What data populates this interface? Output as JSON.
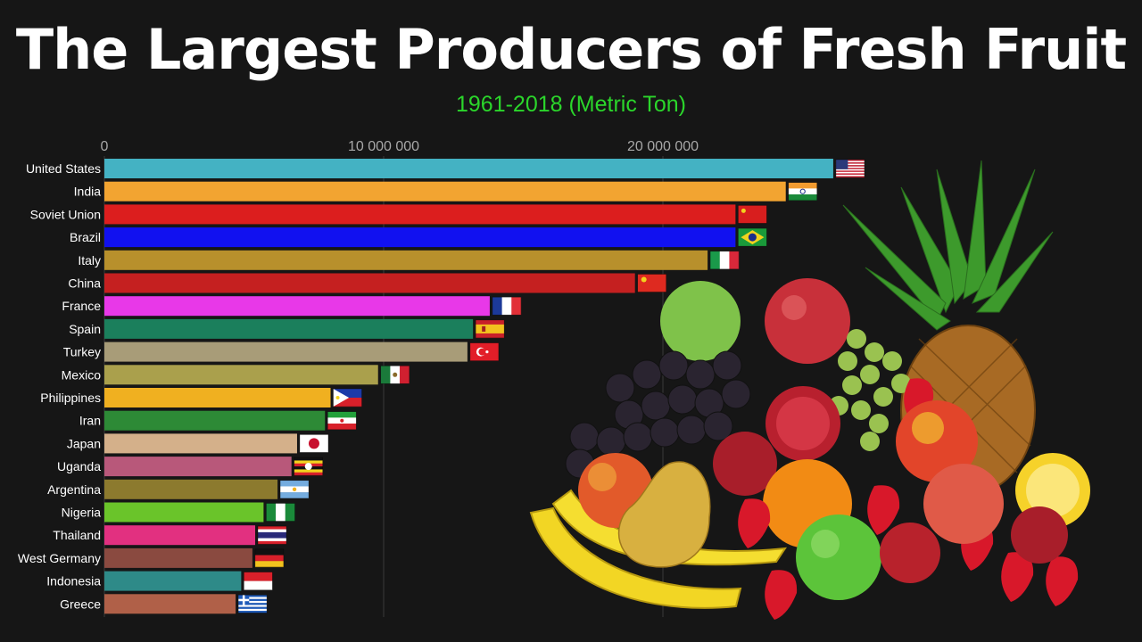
{
  "header": {
    "title": "The Largest Producers of Fresh Fruit",
    "subtitle": "1961-2018 (Metric Ton)"
  },
  "chart_data": {
    "type": "bar",
    "orientation": "horizontal",
    "title": "The Largest Producers of Fresh Fruit",
    "subtitle": "1961-2018 (Metric Ton)",
    "xlim": [
      0,
      26000000
    ],
    "xticks": [
      0,
      10000000,
      20000000
    ],
    "xtick_labels": [
      "0",
      "10 000 000",
      "20 000 000"
    ],
    "grid": true,
    "categories": [
      "United States",
      "India",
      "Soviet Union",
      "Brazil",
      "Italy",
      "China",
      "France",
      "Spain",
      "Turkey",
      "Mexico",
      "Philippines",
      "Iran",
      "Japan",
      "Uganda",
      "Argentina",
      "Nigeria",
      "Thailand",
      "West Germany",
      "Indonesia",
      "Greece"
    ],
    "values": [
      26100000,
      24400000,
      22600000,
      22600000,
      21600000,
      19000000,
      13800000,
      13200000,
      13000000,
      9800000,
      8100000,
      7900000,
      6900000,
      6700000,
      6200000,
      5700000,
      5400000,
      5300000,
      4900000,
      4700000
    ],
    "colors": [
      "#44b2c3",
      "#f2a431",
      "#dc1e1e",
      "#1111f0",
      "#b8902c",
      "#c52020",
      "#e838e8",
      "#1b7f5c",
      "#a89c78",
      "#aaa04c",
      "#f0b020",
      "#2d8a36",
      "#d4b08a",
      "#b8587a",
      "#8c7a2e",
      "#6ac42a",
      "#e23080",
      "#8a4a40",
      "#2e8a88",
      "#b06048"
    ],
    "flags": [
      "us-flag-icon",
      "india-flag-icon",
      "ussr-flag-icon",
      "brazil-flag-icon",
      "italy-flag-icon",
      "china-flag-icon",
      "france-flag-icon",
      "spain-flag-icon",
      "turkey-flag-icon",
      "mexico-flag-icon",
      "philippines-flag-icon",
      "iran-flag-icon",
      "japan-flag-icon",
      "uganda-flag-icon",
      "argentina-flag-icon",
      "nigeria-flag-icon",
      "thailand-flag-icon",
      "germany-flag-icon",
      "indonesia-flag-icon",
      "greece-flag-icon"
    ]
  },
  "image": {
    "icon": "fruit-pile-illustration"
  }
}
